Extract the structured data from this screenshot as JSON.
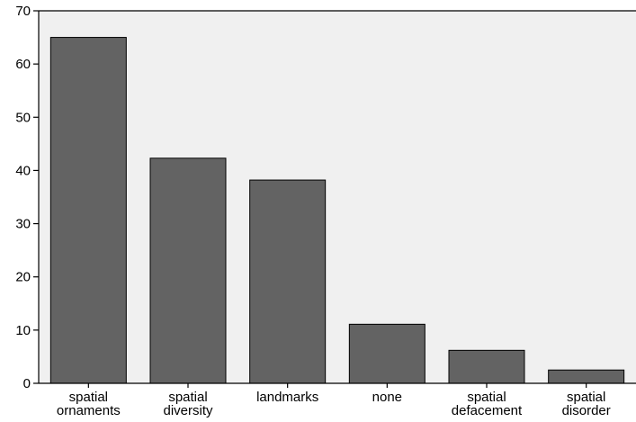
{
  "chart_data": {
    "type": "bar",
    "categories": [
      [
        "spatial",
        "ornaments"
      ],
      [
        "spatial",
        "diversity"
      ],
      [
        "landmarks"
      ],
      [
        "none"
      ],
      [
        "spatial",
        "defacement"
      ],
      [
        "spatial",
        "disorder"
      ]
    ],
    "values": [
      65,
      42.3,
      38.2,
      11.1,
      6.2,
      2.5
    ],
    "ylim": [
      0,
      70
    ],
    "yticks": [
      "0",
      "10",
      "20",
      "30",
      "40",
      "50",
      "60",
      "70"
    ],
    "title": "",
    "xlabel": "",
    "ylabel": "",
    "grid": false,
    "colors": {
      "plot_background": "#f0f0f0",
      "bar_fill": "#636363",
      "bar_stroke": "#000000",
      "axis": "#000000"
    }
  }
}
